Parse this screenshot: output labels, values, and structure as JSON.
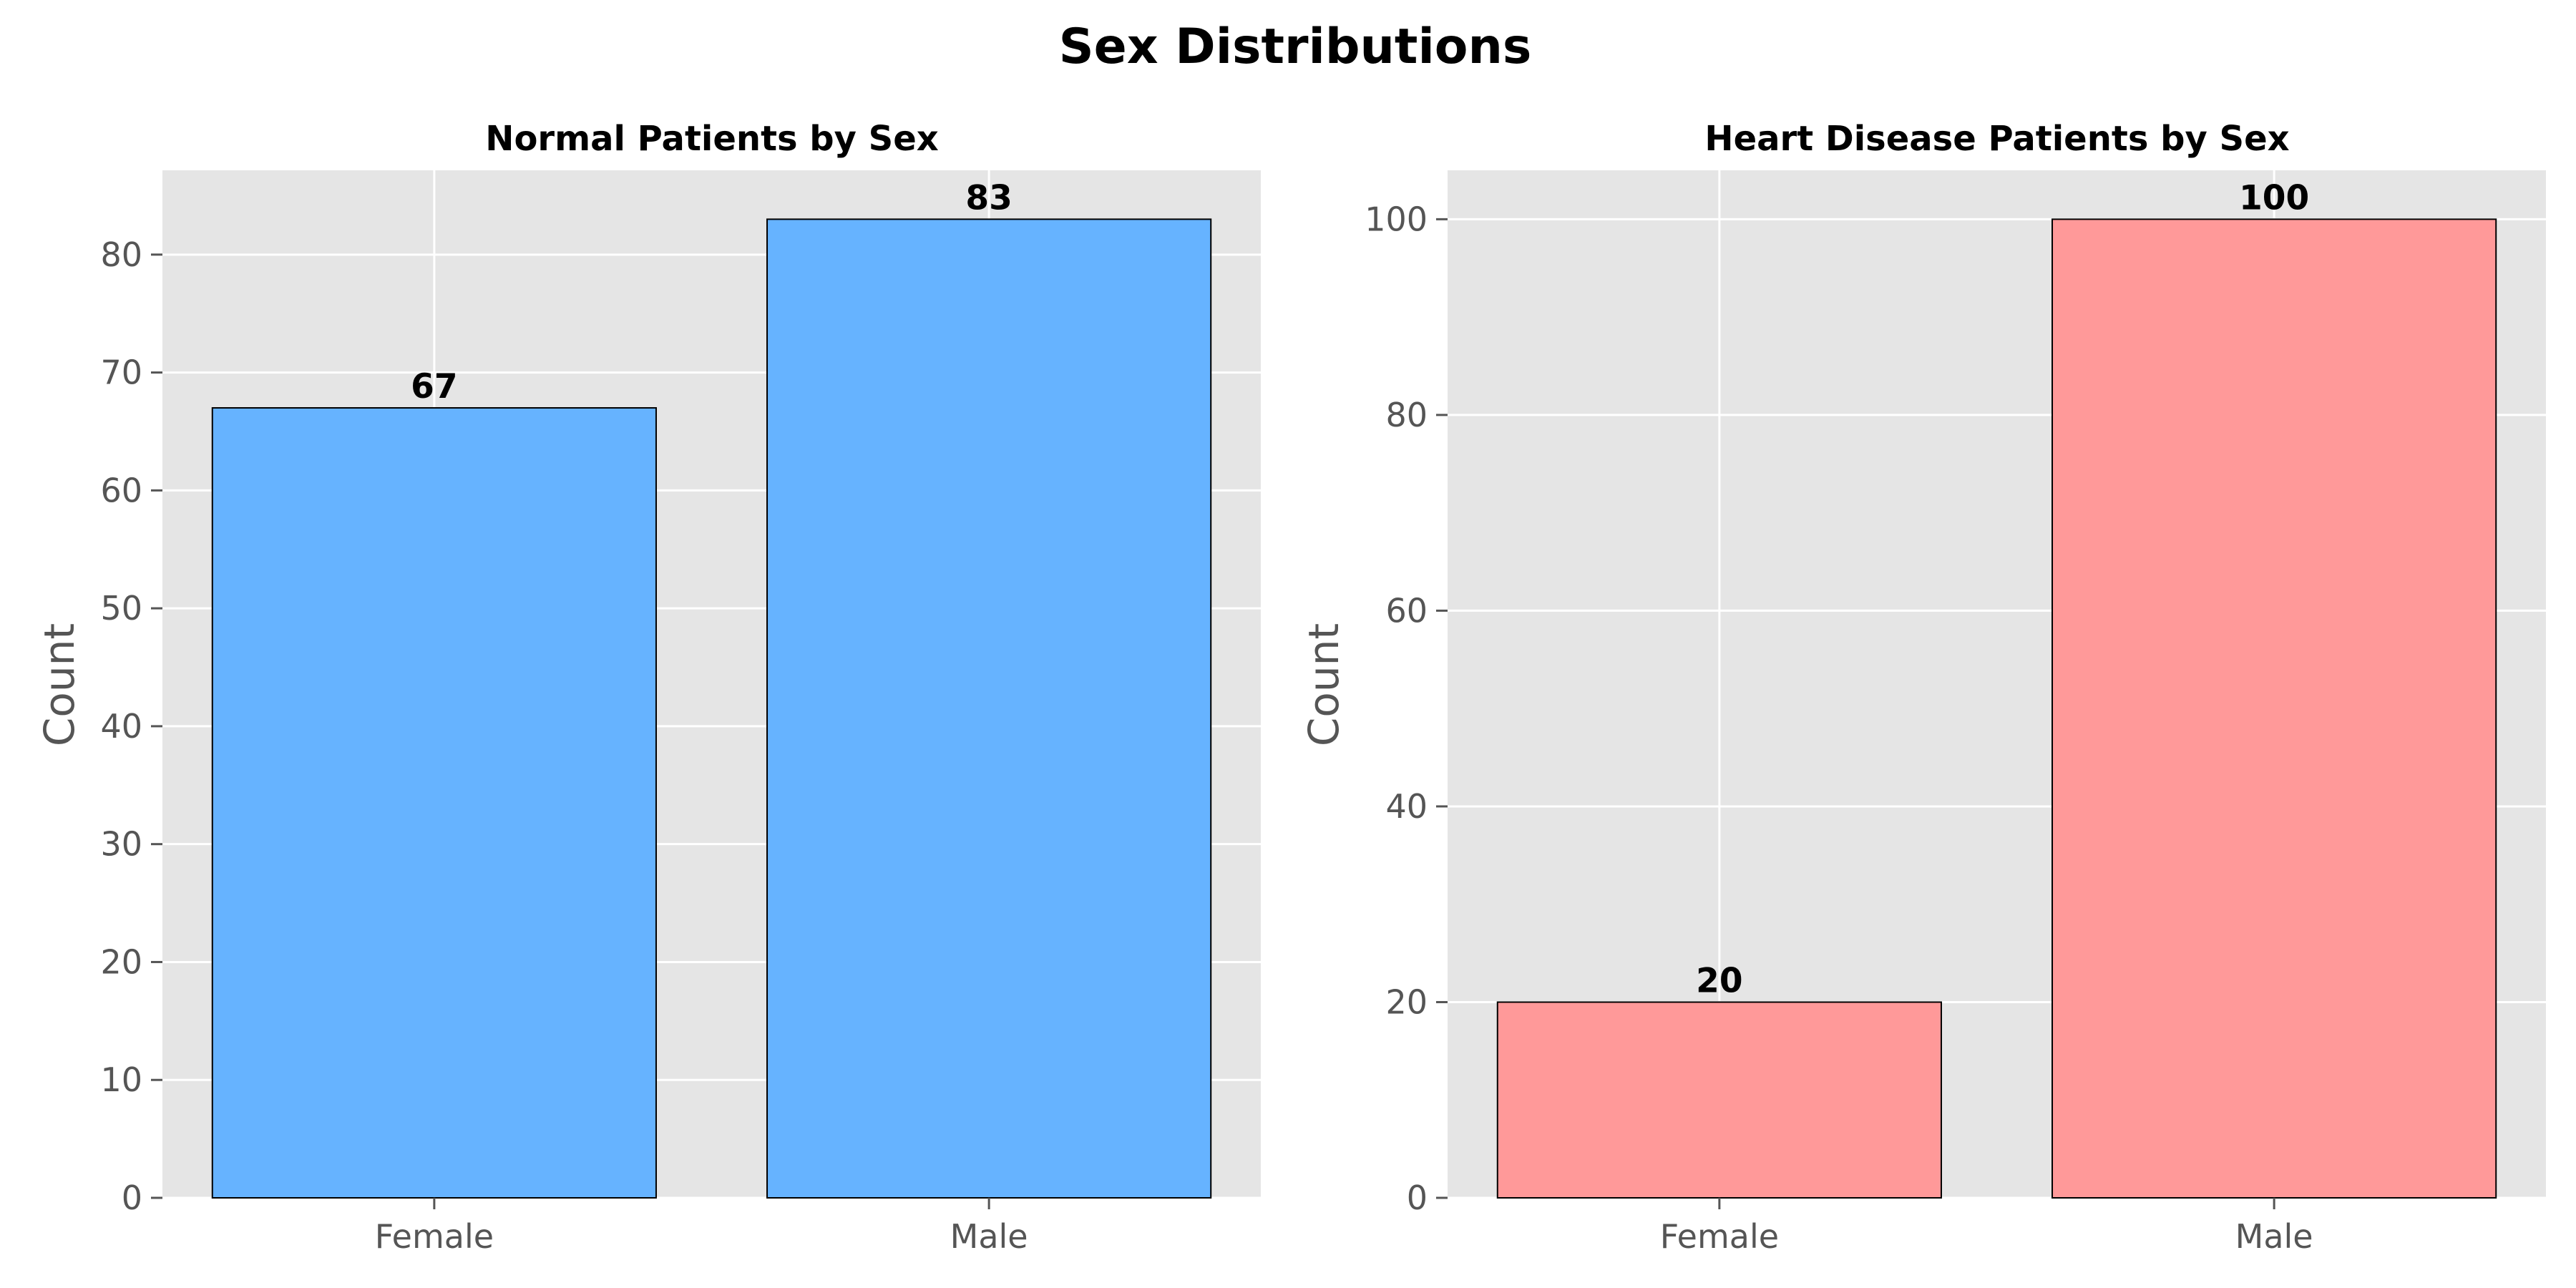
{
  "figure": {
    "suptitle": "Sex Distributions"
  },
  "chart_data": [
    {
      "type": "bar",
      "title": "Normal Patients by Sex",
      "categories": [
        "Female",
        "Male"
      ],
      "values": [
        67,
        83
      ],
      "value_labels": [
        "67",
        "83"
      ],
      "xlabel": "",
      "ylabel": "Count",
      "ylim": [
        0,
        87.15
      ],
      "yticks": [
        0,
        10,
        20,
        30,
        40,
        50,
        60,
        70,
        80
      ],
      "ytick_labels": [
        "0",
        "10",
        "20",
        "30",
        "40",
        "50",
        "60",
        "70",
        "80"
      ],
      "grid": true,
      "bar_color": "#66b3ff",
      "edge_color": "#000000",
      "background": "#e5e5e5"
    },
    {
      "type": "bar",
      "title": "Heart Disease Patients by Sex",
      "categories": [
        "Female",
        "Male"
      ],
      "values": [
        20,
        100
      ],
      "value_labels": [
        "20",
        "100"
      ],
      "xlabel": "",
      "ylabel": "Count",
      "ylim": [
        0,
        105
      ],
      "yticks": [
        0,
        20,
        40,
        60,
        80,
        100
      ],
      "ytick_labels": [
        "0",
        "20",
        "40",
        "60",
        "80",
        "100"
      ],
      "grid": true,
      "bar_color": "#ff9999",
      "edge_color": "#000000",
      "background": "#e5e5e5"
    }
  ]
}
